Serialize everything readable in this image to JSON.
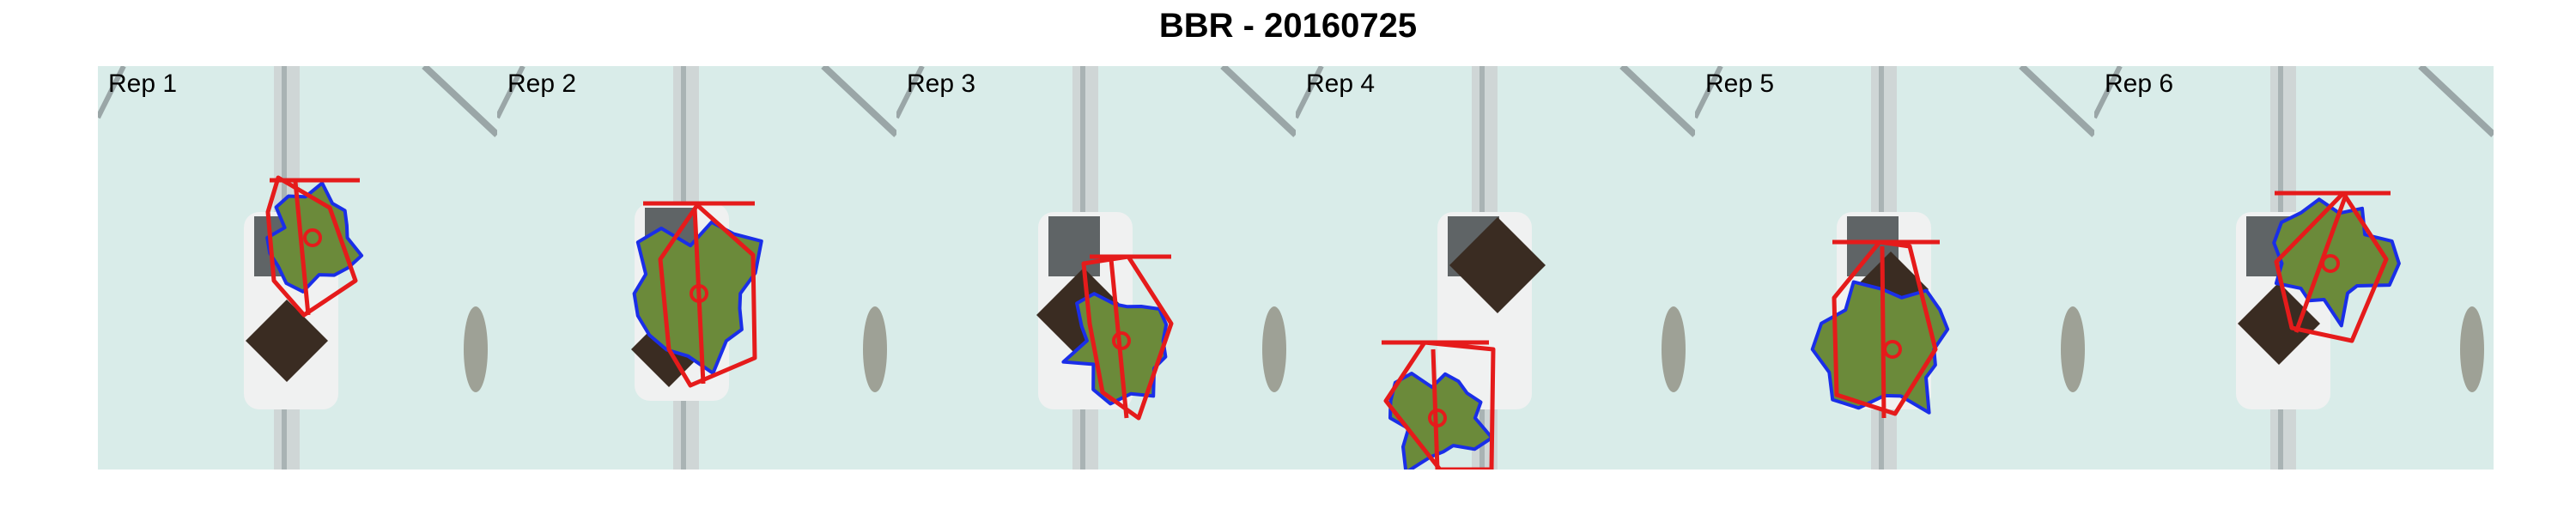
{
  "figure": {
    "title": "BBR - 20160725"
  },
  "panels": [
    {
      "label": "Rep 1"
    },
    {
      "label": "Rep 2"
    },
    {
      "label": "Rep 3"
    },
    {
      "label": "Rep 4"
    },
    {
      "label": "Rep 5"
    },
    {
      "label": "Rep 6"
    }
  ],
  "colors": {
    "background": "#d9ece9",
    "plant": "#6b8a3a",
    "contour": "#1a2ee8",
    "hull": "#e51b1b",
    "soil": "#3a2c22",
    "pot": "#f0f1f1"
  }
}
